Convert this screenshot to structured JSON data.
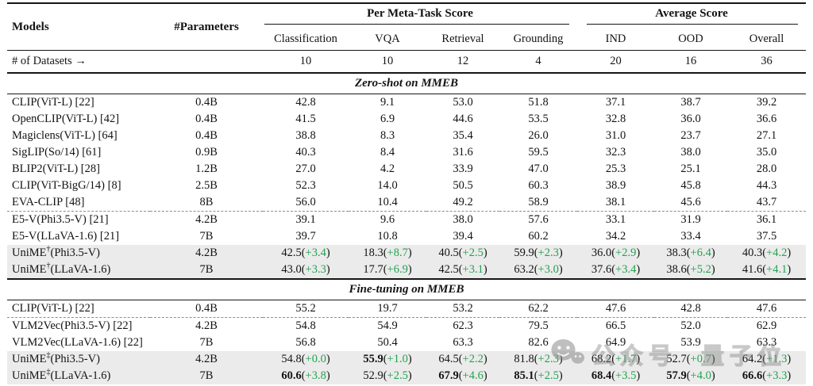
{
  "colors": {
    "text": "#131313",
    "delta_green": "#22a24f",
    "highlight_row": "#ebebeb",
    "rule": "#161616",
    "dashed_rule": "#8d8d8d",
    "watermark_gray": "#8c8c8c"
  },
  "table": {
    "header": {
      "models": "Models",
      "parameters": "#Parameters",
      "group_meta": "Per Meta-Task Score",
      "group_avg": "Average Score",
      "sub": [
        "Classification",
        "VQA",
        "Retrieval",
        "Grounding",
        "IND",
        "OOD",
        "Overall"
      ]
    },
    "datasets_row": {
      "label": "# of Datasets →",
      "values": [
        "10",
        "10",
        "12",
        "4",
        "20",
        "16",
        "36"
      ]
    },
    "sections": [
      {
        "title": "Zero-shot on MMEB",
        "rows": [
          {
            "model": "CLIP(ViT-L) [22]",
            "params": "0.4B",
            "cells": [
              {
                "v": "42.8"
              },
              {
                "v": "9.1"
              },
              {
                "v": "53.0"
              },
              {
                "v": "51.8"
              },
              {
                "v": "37.1"
              },
              {
                "v": "38.7"
              },
              {
                "v": "39.2"
              }
            ]
          },
          {
            "model": "OpenCLIP(ViT-L) [42]",
            "params": "0.4B",
            "cells": [
              {
                "v": "41.5"
              },
              {
                "v": "6.9"
              },
              {
                "v": "44.6"
              },
              {
                "v": "53.5"
              },
              {
                "v": "32.8"
              },
              {
                "v": "36.0"
              },
              {
                "v": "36.6"
              }
            ]
          },
          {
            "model": "Magiclens(ViT-L) [64]",
            "params": "0.4B",
            "cells": [
              {
                "v": "38.8"
              },
              {
                "v": "8.3"
              },
              {
                "v": "35.4"
              },
              {
                "v": "26.0"
              },
              {
                "v": "31.0"
              },
              {
                "v": "23.7"
              },
              {
                "v": "27.1"
              }
            ]
          },
          {
            "model": "SigLIP(So/14) [61]",
            "params": "0.9B",
            "cells": [
              {
                "v": "40.3"
              },
              {
                "v": "8.4"
              },
              {
                "v": "31.6"
              },
              {
                "v": "59.5"
              },
              {
                "v": "32.3"
              },
              {
                "v": "38.0"
              },
              {
                "v": "35.0"
              }
            ]
          },
          {
            "model": "BLIP2(ViT-L) [28]",
            "params": "1.2B",
            "cells": [
              {
                "v": "27.0"
              },
              {
                "v": "4.2"
              },
              {
                "v": "33.9"
              },
              {
                "v": "47.0"
              },
              {
                "v": "25.3"
              },
              {
                "v": "25.1"
              },
              {
                "v": "28.0"
              }
            ]
          },
          {
            "model": "CLIP(ViT-BigG/14) [8]",
            "params": "2.5B",
            "cells": [
              {
                "v": "52.3"
              },
              {
                "v": "14.0"
              },
              {
                "v": "50.5"
              },
              {
                "v": "60.3"
              },
              {
                "v": "38.9"
              },
              {
                "v": "45.8"
              },
              {
                "v": "44.3"
              }
            ]
          },
          {
            "model": "EVA-CLIP [48]",
            "params": "8B",
            "cells": [
              {
                "v": "56.0"
              },
              {
                "v": "10.4"
              },
              {
                "v": "49.2"
              },
              {
                "v": "58.9"
              },
              {
                "v": "38.1"
              },
              {
                "v": "45.6"
              },
              {
                "v": "43.7"
              }
            ]
          },
          {
            "model": "E5-V(Phi3.5-V) [21]",
            "params": "4.2B",
            "dashed": true,
            "cells": [
              {
                "v": "39.1"
              },
              {
                "v": "9.6"
              },
              {
                "v": "38.0"
              },
              {
                "v": "57.6"
              },
              {
                "v": "33.1"
              },
              {
                "v": "31.9"
              },
              {
                "v": "36.1"
              }
            ]
          },
          {
            "model": "E5-V(LLaVA-1.6) [21]",
            "params": "7B",
            "cells": [
              {
                "v": "39.7"
              },
              {
                "v": "10.8"
              },
              {
                "v": "39.4"
              },
              {
                "v": "60.2"
              },
              {
                "v": "34.2"
              },
              {
                "v": "33.4"
              },
              {
                "v": "37.5"
              }
            ]
          },
          {
            "model": "UniME",
            "sup": "†",
            "post": "(Phi3.5-V)",
            "params": "4.2B",
            "highlight": true,
            "cells": [
              {
                "v": "42.5",
                "d": "+3.4"
              },
              {
                "v": "18.3",
                "d": "+8.7"
              },
              {
                "v": "40.5",
                "d": "+2.5"
              },
              {
                "v": "59.9",
                "d": "+2.3"
              },
              {
                "v": "36.0",
                "d": "+2.9"
              },
              {
                "v": "38.3",
                "d": "+6.4"
              },
              {
                "v": "40.3",
                "d": "+4.2"
              }
            ]
          },
          {
            "model": "UniME",
            "sup": "†",
            "post": "(LLaVA-1.6)",
            "params": "7B",
            "highlight": true,
            "cells": [
              {
                "v": "43.0",
                "d": "+3.3"
              },
              {
                "v": "17.7",
                "d": "+6.9"
              },
              {
                "v": "42.5",
                "d": "+3.1"
              },
              {
                "v": "63.2",
                "d": "+3.0"
              },
              {
                "v": "37.6",
                "d": "+3.4"
              },
              {
                "v": "38.6",
                "d": "+5.2"
              },
              {
                "v": "41.6",
                "d": "+4.1"
              }
            ]
          }
        ]
      },
      {
        "title": "Fine-tuning on MMEB",
        "rows": [
          {
            "model": "CLIP(ViT-L) [22]",
            "params": "0.4B",
            "cells": [
              {
                "v": "55.2"
              },
              {
                "v": "19.7"
              },
              {
                "v": "53.2"
              },
              {
                "v": "62.2"
              },
              {
                "v": "47.6"
              },
              {
                "v": "42.8"
              },
              {
                "v": "47.6"
              }
            ]
          },
          {
            "model": "VLM2Vec(Phi3.5-V) [22]",
            "params": "4.2B",
            "dashed": true,
            "cells": [
              {
                "v": "54.8"
              },
              {
                "v": "54.9"
              },
              {
                "v": "62.3"
              },
              {
                "v": "79.5"
              },
              {
                "v": "66.5"
              },
              {
                "v": "52.0"
              },
              {
                "v": "62.9"
              }
            ]
          },
          {
            "model": "VLM2Vec(LLaVA-1.6) [22]",
            "params": "7B",
            "cells": [
              {
                "v": "56.8"
              },
              {
                "v": "50.4"
              },
              {
                "v": "63.3"
              },
              {
                "v": "82.6"
              },
              {
                "v": "64.9"
              },
              {
                "v": "53.9"
              },
              {
                "v": "63.3"
              }
            ]
          },
          {
            "model": "UniME",
            "sup": "‡",
            "post": "(Phi3.5-V)",
            "params": "4.2B",
            "highlight": true,
            "cells": [
              {
                "v": "54.8",
                "d": "+0.0"
              },
              {
                "v": "55.9",
                "d": "+1.0",
                "b": true
              },
              {
                "v": "64.5",
                "d": "+2.2"
              },
              {
                "v": "81.8",
                "d": "+2.3"
              },
              {
                "v": "68.2",
                "d": "+1.7"
              },
              {
                "v": "52.7",
                "d": "+0.7"
              },
              {
                "v": "64.2",
                "d": "+1.3"
              }
            ]
          },
          {
            "model": "UniME",
            "sup": "‡",
            "post": "(LLaVA-1.6)",
            "params": "7B",
            "highlight": true,
            "cells": [
              {
                "v": "60.6",
                "d": "+3.8",
                "b": true
              },
              {
                "v": "52.9",
                "d": "+2.5"
              },
              {
                "v": "67.9",
                "d": "+4.6",
                "b": true
              },
              {
                "v": "85.1",
                "d": "+2.5",
                "b": true
              },
              {
                "v": "68.4",
                "d": "+3.5",
                "b": true
              },
              {
                "v": "57.9",
                "d": "+4.0",
                "b": true
              },
              {
                "v": "66.6",
                "d": "+3.3",
                "b": true
              }
            ]
          }
        ]
      }
    ]
  },
  "watermark": {
    "icon": "wechat-icon",
    "text_left": "公众号",
    "text_right": "量子位"
  }
}
